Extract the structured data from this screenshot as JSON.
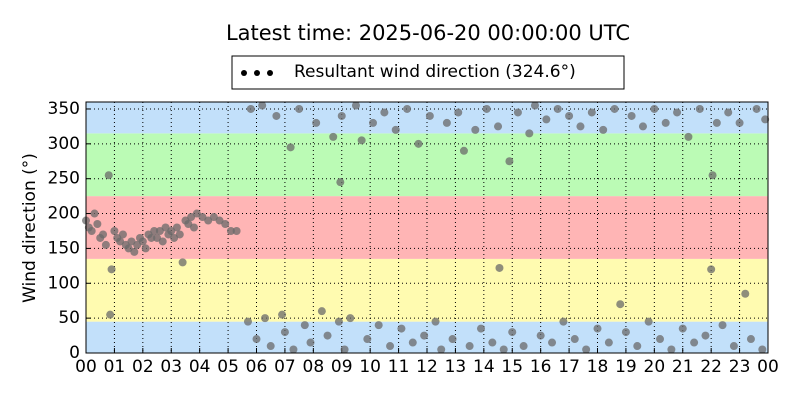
{
  "chart_data": {
    "type": "scatter",
    "title": "Latest time: 2025-06-20 00:00:00 UTC",
    "y_label": "Wind direction (°)",
    "xlim": [
      0,
      24
    ],
    "xticks": [
      {
        "value": 0,
        "label": "00"
      },
      {
        "value": 1,
        "label": "01"
      },
      {
        "value": 2,
        "label": "02"
      },
      {
        "value": 3,
        "label": "03"
      },
      {
        "value": 4,
        "label": "04"
      },
      {
        "value": 5,
        "label": "05"
      },
      {
        "value": 6,
        "label": "06"
      },
      {
        "value": 7,
        "label": "07"
      },
      {
        "value": 8,
        "label": "08"
      },
      {
        "value": 9,
        "label": "09"
      },
      {
        "value": 10,
        "label": "10"
      },
      {
        "value": 11,
        "label": "11"
      },
      {
        "value": 12,
        "label": "12"
      },
      {
        "value": 13,
        "label": "13"
      },
      {
        "value": 14,
        "label": "14"
      },
      {
        "value": 15,
        "label": "15"
      },
      {
        "value": 16,
        "label": "16"
      },
      {
        "value": 17,
        "label": "17"
      },
      {
        "value": 18,
        "label": "18"
      },
      {
        "value": 19,
        "label": "19"
      },
      {
        "value": 20,
        "label": "20"
      },
      {
        "value": 21,
        "label": "21"
      },
      {
        "value": 22,
        "label": "22"
      },
      {
        "value": 23,
        "label": "23"
      },
      {
        "value": 24,
        "label": "00"
      }
    ],
    "ylim": [
      0,
      360
    ],
    "yticks": [
      0,
      50,
      100,
      150,
      200,
      250,
      300,
      350
    ],
    "grid": true,
    "legend": "top",
    "bands": [
      {
        "from": 0,
        "to": 45,
        "color": "#c2e0fa"
      },
      {
        "from": 45,
        "to": 135,
        "color": "#fffbb0"
      },
      {
        "from": 135,
        "to": 225,
        "color": "#ffb5b5"
      },
      {
        "from": 225,
        "to": 315,
        "color": "#bbfbb5"
      },
      {
        "from": 315,
        "to": 360,
        "color": "#c2e0fa"
      }
    ],
    "series": [
      {
        "name": "Resultant wind direction (324.6°)",
        "color": "#6a6a6a",
        "x": [
          0.0,
          0.1,
          0.2,
          0.3,
          0.4,
          0.5,
          0.6,
          0.7,
          0.8,
          0.85,
          0.9,
          1.0,
          1.1,
          1.2,
          1.3,
          1.4,
          1.5,
          1.6,
          1.7,
          1.8,
          1.9,
          2.0,
          2.1,
          2.2,
          2.3,
          2.4,
          2.5,
          2.6,
          2.7,
          2.8,
          2.9,
          3.0,
          3.1,
          3.2,
          3.3,
          3.4,
          3.5,
          3.6,
          3.7,
          3.8,
          3.9,
          4.1,
          4.3,
          4.5,
          4.7,
          4.9,
          5.1,
          5.3,
          5.7,
          5.8,
          6.0,
          6.2,
          6.3,
          6.5,
          6.7,
          6.9,
          7.0,
          7.2,
          7.3,
          7.5,
          7.7,
          7.9,
          8.1,
          8.3,
          8.5,
          8.7,
          8.9,
          8.95,
          9.0,
          9.1,
          9.3,
          9.5,
          9.7,
          9.9,
          10.1,
          10.3,
          10.5,
          10.7,
          10.9,
          11.1,
          11.3,
          11.5,
          11.7,
          11.9,
          12.1,
          12.3,
          12.5,
          12.7,
          12.9,
          13.1,
          13.3,
          13.5,
          13.7,
          13.9,
          14.1,
          14.3,
          14.5,
          14.55,
          14.7,
          14.9,
          15.0,
          15.2,
          15.4,
          15.6,
          15.8,
          16.0,
          16.2,
          16.4,
          16.6,
          16.8,
          17.0,
          17.2,
          17.4,
          17.6,
          17.8,
          18.0,
          18.2,
          18.4,
          18.6,
          18.8,
          19.0,
          19.2,
          19.4,
          19.6,
          19.8,
          20.0,
          20.2,
          20.4,
          20.6,
          20.8,
          21.0,
          21.2,
          21.4,
          21.6,
          21.8,
          22.0,
          22.05,
          22.2,
          22.4,
          22.6,
          22.8,
          23.0,
          23.2,
          23.4,
          23.6,
          23.8,
          23.9
        ],
        "values": [
          190,
          180,
          175,
          200,
          185,
          165,
          170,
          155,
          255,
          55,
          120,
          175,
          165,
          160,
          170,
          155,
          150,
          160,
          145,
          155,
          165,
          160,
          150,
          170,
          165,
          175,
          165,
          175,
          160,
          180,
          170,
          175,
          165,
          180,
          170,
          130,
          190,
          185,
          195,
          180,
          200,
          195,
          190,
          195,
          190,
          185,
          175,
          175,
          45,
          350,
          20,
          355,
          50,
          10,
          340,
          55,
          30,
          295,
          5,
          350,
          40,
          15,
          330,
          60,
          25,
          310,
          45,
          245,
          340,
          5,
          50,
          355,
          305,
          20,
          330,
          40,
          345,
          10,
          320,
          35,
          350,
          15,
          300,
          25,
          340,
          45,
          5,
          330,
          20,
          345,
          290,
          10,
          320,
          35,
          350,
          15,
          325,
          122,
          5,
          275,
          30,
          345,
          10,
          315,
          355,
          25,
          335,
          15,
          350,
          45,
          340,
          20,
          325,
          5,
          345,
          35,
          320,
          15,
          350,
          70,
          30,
          340,
          10,
          325,
          45,
          350,
          20,
          330,
          5,
          345,
          35,
          310,
          15,
          350,
          25,
          120,
          255,
          330,
          40,
          345,
          10,
          330,
          85,
          20,
          350,
          5,
          335
        ]
      }
    ]
  }
}
